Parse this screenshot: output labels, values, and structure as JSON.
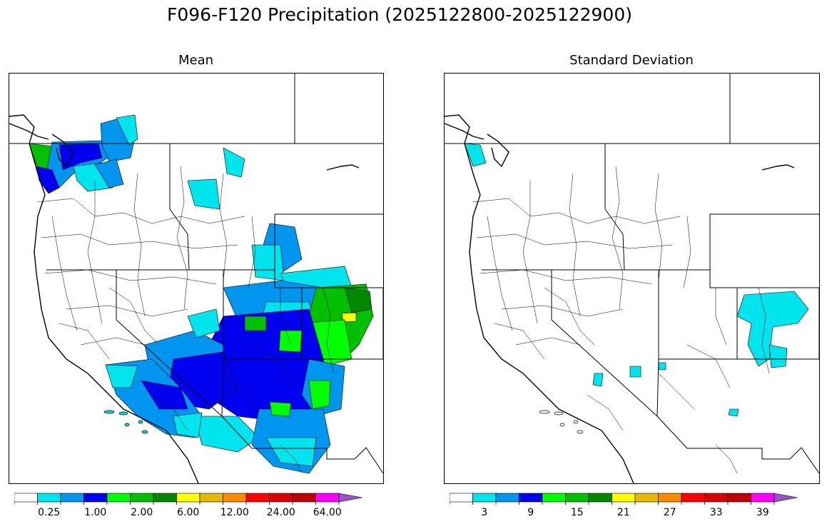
{
  "title": "F096-F120 Precipitation (2025122800-2025122900)",
  "panels": {
    "mean": {
      "title": "Mean",
      "colorbar": {
        "tick_labels": [
          "0.25",
          "1.00",
          "2.00",
          "6.00",
          "12.00",
          "24.00",
          "64.00"
        ],
        "colors": [
          "#ffffff",
          "#00e4ee",
          "#0096f0",
          "#0000f0",
          "#00ff00",
          "#00c000",
          "#008800",
          "#ffff00",
          "#e6b800",
          "#ff8a00",
          "#ff0000",
          "#d80000",
          "#c00000",
          "#ff00ff",
          "#9a52c8"
        ]
      }
    },
    "std": {
      "title": "Standard Deviation",
      "colorbar": {
        "tick_labels": [
          "3",
          "9",
          "15",
          "21",
          "27",
          "33",
          "39"
        ],
        "colors": [
          "#ffffff",
          "#00e4ee",
          "#0096f0",
          "#0000f0",
          "#00ff00",
          "#00c000",
          "#008800",
          "#ffff00",
          "#e6b800",
          "#ff8a00",
          "#ff0000",
          "#d80000",
          "#c00000",
          "#ff00ff",
          "#9a52c8"
        ]
      }
    }
  },
  "legend_categories_mean": {
    "washington_coast": "#00c000",
    "puget_sound": "#0000f0",
    "north_cascades": "#0096f0",
    "four_corners_core": "#0000f0",
    "colorado_front": "#00c000",
    "southern_california": "#0096f0",
    "peak_cell": "#ffff00"
  },
  "legend_categories_std": {
    "colorado_east": "#00e4ee",
    "washington_coast": "#00e4ee"
  }
}
